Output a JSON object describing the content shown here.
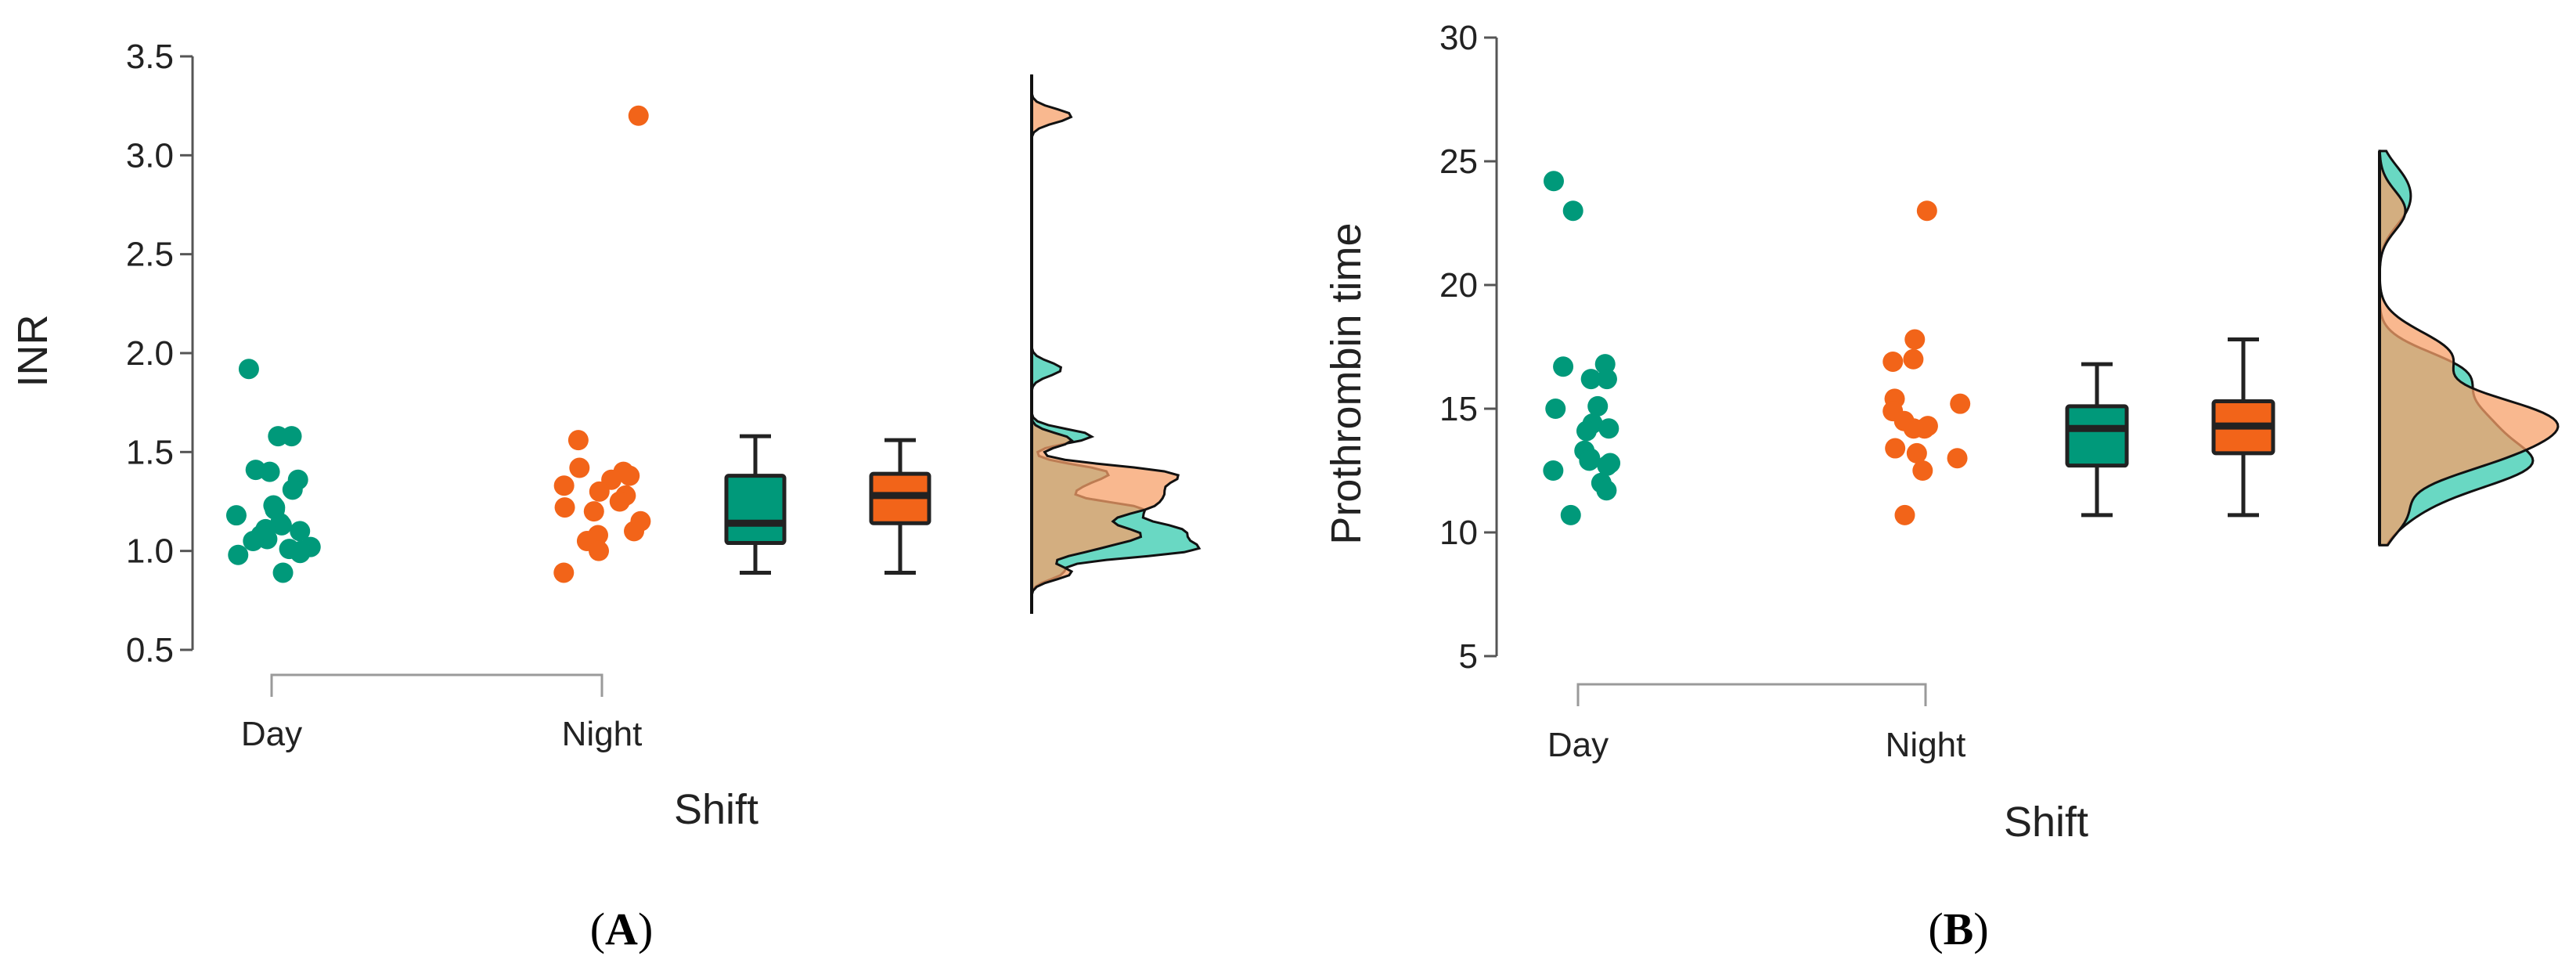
{
  "colors": {
    "day": "#00997a",
    "night": "#f26419",
    "whisker": "#222222",
    "overlap": "#b5935c"
  },
  "chart_data": [
    {
      "type": "scatter",
      "panel_label": "A",
      "ylabel": "INR",
      "xlabel": "Shift",
      "categories": [
        "Day",
        "Night"
      ],
      "ylim": [
        0.5,
        3.5
      ],
      "yticks": [
        "0.5",
        "1.0",
        "1.5",
        "2.0",
        "2.5",
        "3.0",
        "3.5"
      ],
      "grid": false,
      "series": [
        {
          "name": "Day",
          "values": [
            1.92,
            1.58,
            1.58,
            1.4,
            1.41,
            1.36,
            1.31,
            1.23,
            1.22,
            1.21,
            1.18,
            1.14,
            1.13,
            1.11,
            1.1,
            1.08,
            1.06,
            1.05,
            1.02,
            1.01,
            1.0,
            0.99,
            0.98,
            0.89
          ],
          "box": {
            "min": 0.89,
            "q1": 1.04,
            "median": 1.14,
            "q3": 1.38,
            "max": 1.58
          }
        },
        {
          "name": "Night",
          "values": [
            3.2,
            1.56,
            1.42,
            1.4,
            1.38,
            1.36,
            1.33,
            1.3,
            1.28,
            1.25,
            1.22,
            1.2,
            1.15,
            1.1,
            1.08,
            1.05,
            1.0,
            0.89
          ],
          "box": {
            "min": 0.89,
            "q1": 1.14,
            "median": 1.28,
            "q3": 1.39,
            "max": 1.56
          }
        }
      ]
    },
    {
      "type": "scatter",
      "panel_label": "B",
      "ylabel": "Prothrombin time",
      "xlabel": "Shift",
      "categories": [
        "Day",
        "Night"
      ],
      "ylim": [
        5,
        30
      ],
      "yticks": [
        "5",
        "10",
        "15",
        "20",
        "25",
        "30"
      ],
      "grid": false,
      "series": [
        {
          "name": "Day",
          "values": [
            24.2,
            23.0,
            16.8,
            16.7,
            16.2,
            16.2,
            15.1,
            15.0,
            14.4,
            14.2,
            14.1,
            13.3,
            13.0,
            12.9,
            12.8,
            12.7,
            12.5,
            12.0,
            11.7,
            10.7
          ],
          "box": {
            "min": 10.7,
            "q1": 12.7,
            "median": 14.2,
            "q3": 15.1,
            "max": 16.8
          }
        },
        {
          "name": "Night",
          "values": [
            23.0,
            17.8,
            17.0,
            16.9,
            15.4,
            15.2,
            14.9,
            14.5,
            14.3,
            14.2,
            14.2,
            13.4,
            13.2,
            13.0,
            12.5,
            10.7
          ],
          "box": {
            "min": 10.7,
            "q1": 13.2,
            "median": 14.3,
            "q3": 15.3,
            "max": 17.8
          }
        }
      ]
    }
  ]
}
